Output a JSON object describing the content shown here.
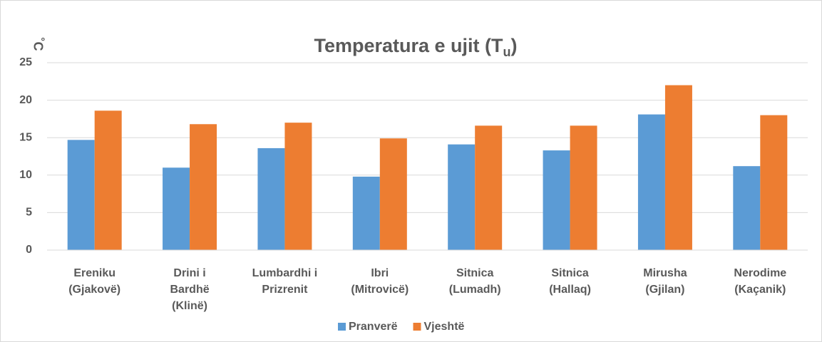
{
  "chart_data": {
    "type": "bar",
    "title": [
      "Temperatura e ujit (T",
      "u",
      ")"
    ],
    "y_label": "˚C",
    "categories": [
      [
        "Ereniku",
        "(Gjakovë)"
      ],
      [
        "Drini i",
        "Bardhë",
        "(Klinë)"
      ],
      [
        "Lumbardhi i",
        "Prizrenit"
      ],
      [
        "Ibri",
        "(Mitrovicë)"
      ],
      [
        "Sitnica",
        "(Lumadh)"
      ],
      [
        "Sitnica",
        "(Hallaq)"
      ],
      [
        "Mirusha",
        "(Gjilan)"
      ],
      [
        "Nerodime",
        "(Kaçanik)"
      ]
    ],
    "series": [
      {
        "name": "Pranverë",
        "color": "#5b9bd5",
        "values": [
          14.7,
          11.0,
          13.6,
          9.8,
          14.1,
          13.3,
          18.1,
          11.2
        ]
      },
      {
        "name": "Vjeshtë",
        "color": "#ed7d31",
        "values": [
          18.6,
          16.8,
          17.0,
          14.9,
          16.6,
          16.6,
          22.0,
          18.0
        ]
      }
    ],
    "ylim": [
      0,
      25
    ],
    "yticks": [
      0,
      5,
      10,
      15,
      20,
      25
    ],
    "grid": true,
    "legend": "bottom"
  }
}
